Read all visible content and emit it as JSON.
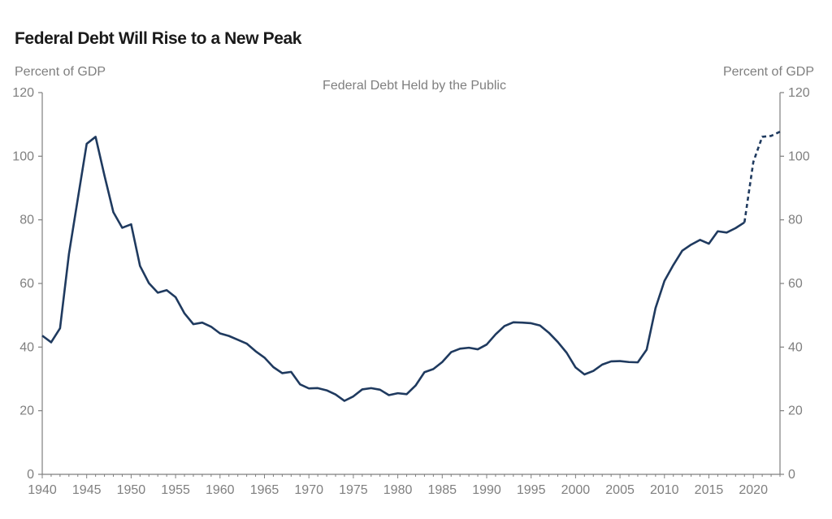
{
  "header": {
    "title": "Federal Debt Will Rise to a New Peak",
    "left_unit": "Percent of GDP",
    "right_unit": "Percent of GDP"
  },
  "chart_data": {
    "type": "line",
    "title": "Federal Debt Held by the Public",
    "xlabel": "",
    "ylabel": "Percent of GDP",
    "xlim": [
      1940,
      2023
    ],
    "ylim": [
      0,
      120
    ],
    "x_ticks": [
      1940,
      1945,
      1950,
      1955,
      1960,
      1965,
      1970,
      1975,
      1980,
      1985,
      1990,
      1995,
      2000,
      2005,
      2010,
      2015,
      2020
    ],
    "y_ticks": [
      0,
      20,
      40,
      60,
      80,
      100,
      120
    ],
    "grid": false,
    "legend": "none",
    "colors": {
      "line": "#1f3a5f",
      "axis": "#7f7f7f",
      "text": "#7f7f7f",
      "title": "#1a1a1a"
    },
    "series": [
      {
        "style": "solid",
        "points": [
          [
            1940,
            43.6
          ],
          [
            1941,
            41.5
          ],
          [
            1942,
            45.9
          ],
          [
            1943,
            69.2
          ],
          [
            1944,
            86.6
          ],
          [
            1945,
            103.9
          ],
          [
            1946,
            106.1
          ],
          [
            1947,
            93.9
          ],
          [
            1948,
            82.4
          ],
          [
            1949,
            77.5
          ],
          [
            1950,
            78.6
          ],
          [
            1951,
            65.5
          ],
          [
            1952,
            60.1
          ],
          [
            1953,
            57.1
          ],
          [
            1954,
            57.9
          ],
          [
            1955,
            55.7
          ],
          [
            1956,
            50.6
          ],
          [
            1957,
            47.2
          ],
          [
            1958,
            47.7
          ],
          [
            1959,
            46.4
          ],
          [
            1960,
            44.3
          ],
          [
            1961,
            43.5
          ],
          [
            1962,
            42.3
          ],
          [
            1963,
            41.1
          ],
          [
            1964,
            38.7
          ],
          [
            1965,
            36.7
          ],
          [
            1966,
            33.7
          ],
          [
            1967,
            31.8
          ],
          [
            1968,
            32.2
          ],
          [
            1969,
            28.3
          ],
          [
            1970,
            27.0
          ],
          [
            1971,
            27.1
          ],
          [
            1972,
            26.4
          ],
          [
            1973,
            25.1
          ],
          [
            1974,
            23.1
          ],
          [
            1975,
            24.5
          ],
          [
            1976,
            26.7
          ],
          [
            1977,
            27.1
          ],
          [
            1978,
            26.6
          ],
          [
            1979,
            24.9
          ],
          [
            1980,
            25.5
          ],
          [
            1981,
            25.2
          ],
          [
            1982,
            27.9
          ],
          [
            1983,
            32.1
          ],
          [
            1984,
            33.1
          ],
          [
            1985,
            35.3
          ],
          [
            1986,
            38.4
          ],
          [
            1987,
            39.5
          ],
          [
            1988,
            39.8
          ],
          [
            1989,
            39.3
          ],
          [
            1990,
            40.8
          ],
          [
            1991,
            44.0
          ],
          [
            1992,
            46.6
          ],
          [
            1993,
            47.8
          ],
          [
            1994,
            47.7
          ],
          [
            1995,
            47.5
          ],
          [
            1996,
            46.8
          ],
          [
            1997,
            44.5
          ],
          [
            1998,
            41.6
          ],
          [
            1999,
            38.2
          ],
          [
            2000,
            33.6
          ],
          [
            2001,
            31.4
          ],
          [
            2002,
            32.5
          ],
          [
            2003,
            34.5
          ],
          [
            2004,
            35.5
          ],
          [
            2005,
            35.6
          ],
          [
            2006,
            35.3
          ],
          [
            2007,
            35.2
          ],
          [
            2008,
            39.2
          ],
          [
            2009,
            52.3
          ],
          [
            2010,
            60.8
          ],
          [
            2011,
            65.8
          ],
          [
            2012,
            70.3
          ],
          [
            2013,
            72.2
          ],
          [
            2014,
            73.7
          ],
          [
            2015,
            72.5
          ],
          [
            2016,
            76.4
          ],
          [
            2017,
            76.0
          ],
          [
            2018,
            77.4
          ],
          [
            2019,
            79.2
          ]
        ]
      },
      {
        "style": "dashed",
        "points": [
          [
            2019,
            79.2
          ],
          [
            2020,
            98.2
          ],
          [
            2021,
            106.1
          ],
          [
            2022,
            106.4
          ],
          [
            2023,
            107.7
          ]
        ]
      }
    ]
  }
}
